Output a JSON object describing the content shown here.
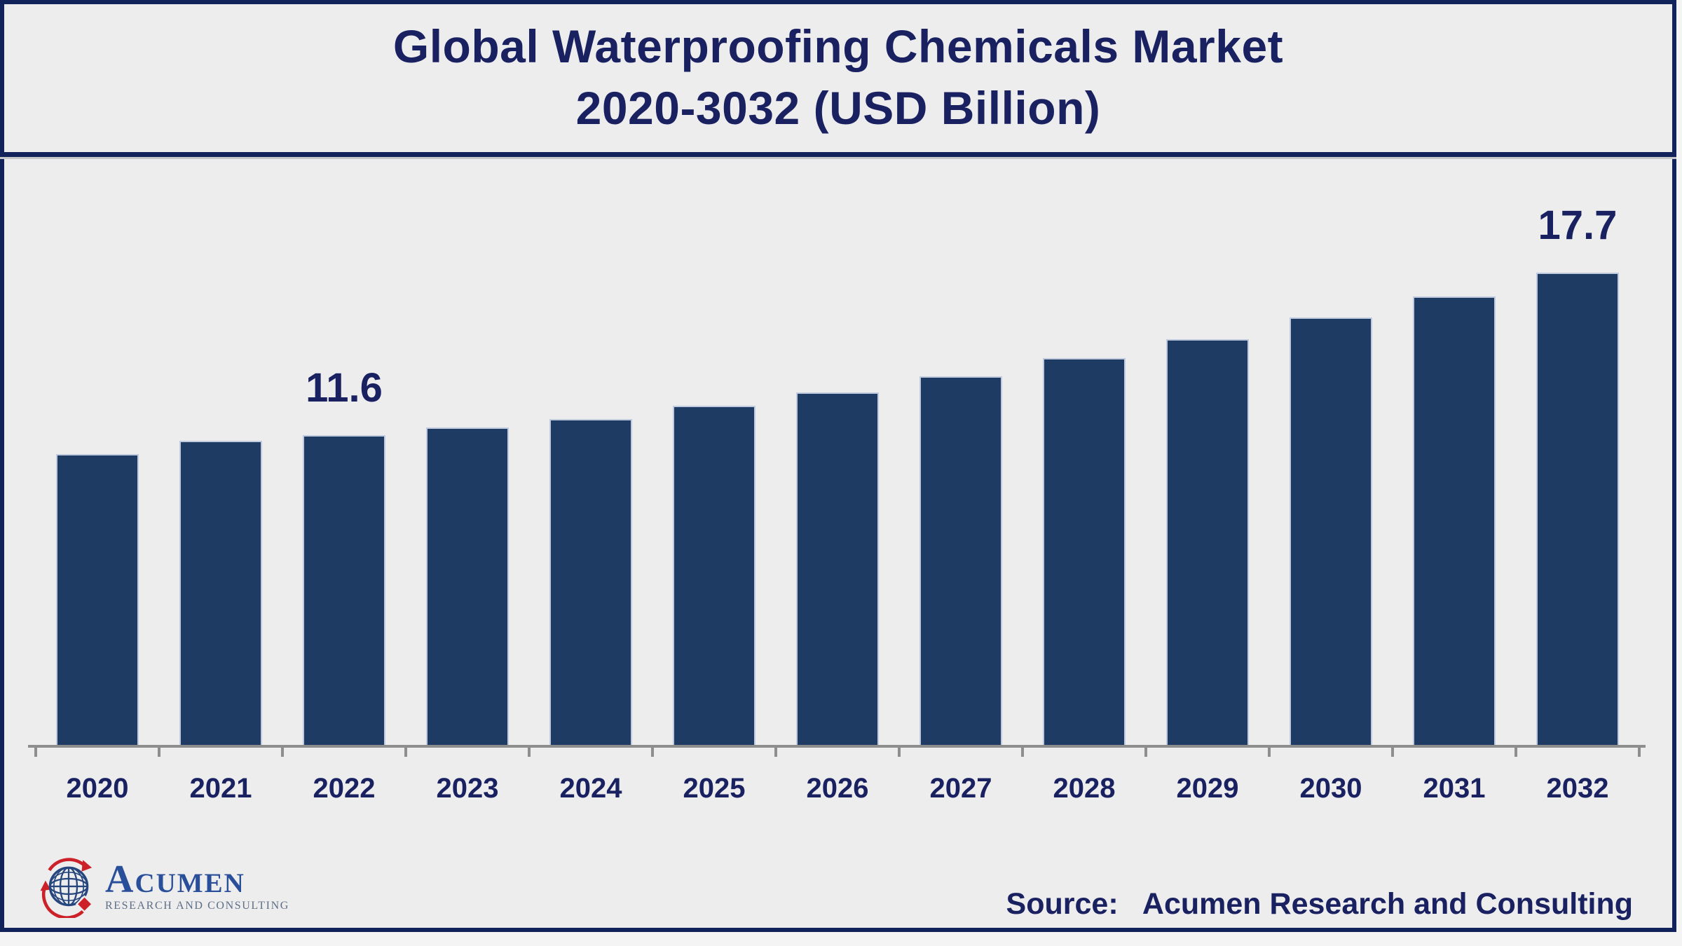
{
  "title": {
    "line1": "Global Waterproofing Chemicals Market",
    "line2": "2020-3032 (USD Billion)"
  },
  "chart_data": {
    "type": "bar",
    "title": "Global Waterproofing Chemicals Market 2020-3032 (USD Billion)",
    "unit": "USD Billion",
    "categories": [
      "2020",
      "2021",
      "2022",
      "2023",
      "2024",
      "2025",
      "2026",
      "2027",
      "2028",
      "2029",
      "2030",
      "2031",
      "2032"
    ],
    "values": [
      10.9,
      11.4,
      11.6,
      11.9,
      12.2,
      12.7,
      13.2,
      13.8,
      14.5,
      15.2,
      16.0,
      16.8,
      17.7
    ],
    "value_labels": {
      "2022": "11.6",
      "2032": "17.7"
    },
    "xlabel": "",
    "ylabel": "",
    "ylim": [
      0,
      21.5
    ],
    "grid": false,
    "legend": false,
    "y_axis_visible": false
  },
  "colors": {
    "background": "#ededee",
    "frame": "#12225b",
    "title_text": "#1a2161",
    "bar": "#1e3c63",
    "axis": "#8e8e8e",
    "logo_blue": "#2a4f9a",
    "logo_gray": "#5d6d86",
    "logo_red": "#cc2129"
  },
  "logo": {
    "icon": "globe-icon",
    "brand": "Acumen",
    "tagline": "RESEARCH AND CONSULTING"
  },
  "footer": {
    "source_prefix": "Source:",
    "source_text": "Acumen Research and Consulting"
  }
}
